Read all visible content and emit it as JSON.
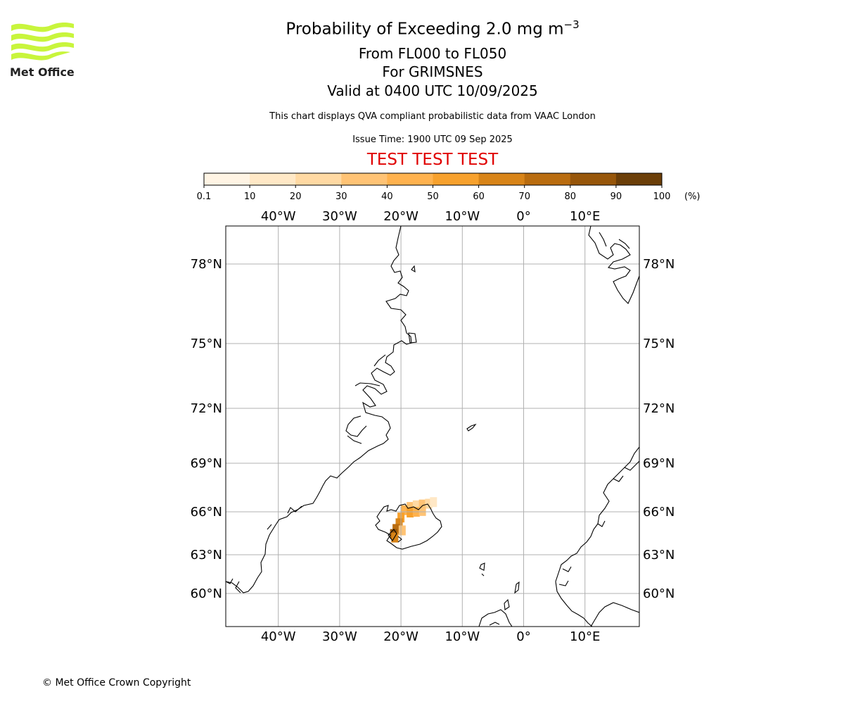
{
  "header": {
    "title_main": "Probability of Exceeding 2.0 mg m",
    "title_sup": "−3",
    "levels": "From FL000 to FL050",
    "volcano": "For GRIMSNES",
    "valid": "Valid at 0400 UTC 10/09/2025",
    "disclaimer": "This chart displays QVA compliant probabilistic data from VAAC London",
    "issue_time": "Issue Time: 1900 UTC 09 Sep 2025",
    "test_banner": "TEST TEST TEST",
    "test_color": "#e00000"
  },
  "logo": {
    "text": "Met Office",
    "icon": "met-office-wave-logo",
    "color": "#c8f53c"
  },
  "colorbar": {
    "unit": "(%)",
    "ticks": [
      "0.1",
      "10",
      "20",
      "30",
      "40",
      "50",
      "60",
      "70",
      "80",
      "90",
      "100"
    ],
    "colors": [
      "#fff4e4",
      "#ffe8c6",
      "#ffd9a3",
      "#ffc375",
      "#ffb24e",
      "#f7a12d",
      "#d88418",
      "#b96c0f",
      "#97560a",
      "#6b3e08"
    ]
  },
  "map": {
    "lon_labels": [
      "40°W",
      "30°W",
      "20°W",
      "10°W",
      "0°",
      "10°E"
    ],
    "lat_labels": [
      "78°N",
      "75°N",
      "72°N",
      "69°N",
      "66°N",
      "63°N",
      "60°N"
    ],
    "ash_plume": [
      {
        "lon": -18.5,
        "lat": 66.3,
        "bin": 3
      },
      {
        "lon": -17.5,
        "lat": 66.4,
        "bin": 2
      },
      {
        "lon": -16.5,
        "lat": 66.45,
        "bin": 3
      },
      {
        "lon": -15.5,
        "lat": 66.5,
        "bin": 2
      },
      {
        "lon": -14.7,
        "lat": 66.6,
        "bin": 1
      },
      {
        "lon": -19.5,
        "lat": 66.1,
        "bin": 4
      },
      {
        "lon": -18.5,
        "lat": 65.95,
        "bin": 5
      },
      {
        "lon": -17.5,
        "lat": 66.0,
        "bin": 4
      },
      {
        "lon": -16.5,
        "lat": 66.05,
        "bin": 3
      },
      {
        "lon": -20.0,
        "lat": 65.6,
        "bin": 5
      },
      {
        "lon": -20.3,
        "lat": 65.2,
        "bin": 6
      },
      {
        "lon": -20.8,
        "lat": 64.8,
        "bin": 7
      },
      {
        "lon": -21.2,
        "lat": 64.45,
        "bin": 8
      },
      {
        "lon": -21.0,
        "lat": 64.2,
        "bin": 6
      },
      {
        "lon": -19.8,
        "lat": 64.7,
        "bin": 3
      }
    ]
  },
  "footer": {
    "copyright": "© Met Office Crown Copyright"
  }
}
